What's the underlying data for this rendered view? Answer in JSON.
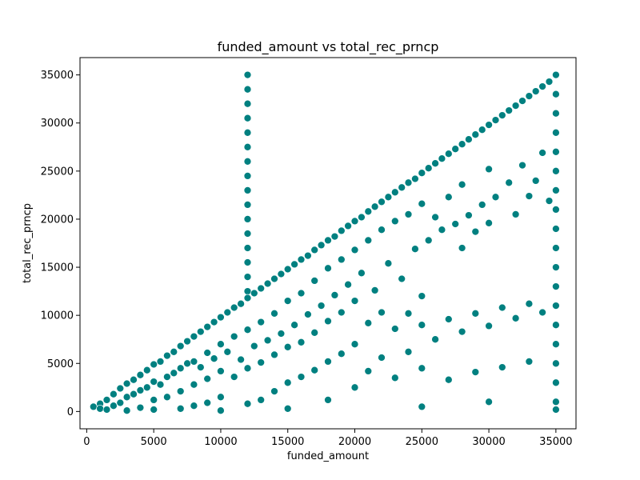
{
  "chart_data": {
    "type": "scatter",
    "title": "funded_amount vs total_rec_prncp",
    "xlabel": "funded_amount",
    "ylabel": "total_rec_prncp",
    "xlim": [
      -500,
      36500
    ],
    "ylim": [
      -1800,
      36800
    ],
    "xticks": [
      0,
      5000,
      10000,
      15000,
      20000,
      25000,
      30000,
      35000
    ],
    "yticks": [
      0,
      5000,
      10000,
      15000,
      20000,
      25000,
      30000,
      35000
    ],
    "grid": false,
    "legend": "none",
    "marker_color": "#008080",
    "marker_edge_color": "#ffffff",
    "series": [
      {
        "points": [
          [
            500,
            500
          ],
          [
            1000,
            800
          ],
          [
            1000,
            300
          ],
          [
            1500,
            1200
          ],
          [
            1500,
            200
          ],
          [
            2000,
            1800
          ],
          [
            2000,
            600
          ],
          [
            2500,
            2400
          ],
          [
            2500,
            900
          ],
          [
            3000,
            2900
          ],
          [
            3000,
            1500
          ],
          [
            3000,
            100
          ],
          [
            3500,
            3300
          ],
          [
            3500,
            1800
          ],
          [
            4000,
            3800
          ],
          [
            4000,
            2200
          ],
          [
            4000,
            400
          ],
          [
            4500,
            4300
          ],
          [
            4500,
            2500
          ],
          [
            5000,
            4900
          ],
          [
            5000,
            3100
          ],
          [
            5000,
            1200
          ],
          [
            5000,
            200
          ],
          [
            5500,
            5200
          ],
          [
            5500,
            2800
          ],
          [
            6000,
            5800
          ],
          [
            6000,
            3600
          ],
          [
            6000,
            1500
          ],
          [
            6500,
            6200
          ],
          [
            6500,
            4000
          ],
          [
            7000,
            6800
          ],
          [
            7000,
            4500
          ],
          [
            7000,
            2100
          ],
          [
            7000,
            300
          ],
          [
            7500,
            7300
          ],
          [
            7500,
            5000
          ],
          [
            8000,
            7800
          ],
          [
            8000,
            5200
          ],
          [
            8000,
            2800
          ],
          [
            8000,
            600
          ],
          [
            8500,
            8300
          ],
          [
            8500,
            4600
          ],
          [
            9000,
            8800
          ],
          [
            9000,
            6100
          ],
          [
            9000,
            3400
          ],
          [
            9000,
            900
          ],
          [
            9500,
            9300
          ],
          [
            9500,
            5500
          ],
          [
            10000,
            9800
          ],
          [
            10000,
            7000
          ],
          [
            10000,
            4200
          ],
          [
            10000,
            1500
          ],
          [
            10000,
            100
          ],
          [
            10500,
            10300
          ],
          [
            10500,
            6200
          ],
          [
            11000,
            10800
          ],
          [
            11000,
            7800
          ],
          [
            11000,
            3600
          ],
          [
            11500,
            11200
          ],
          [
            11500,
            5400
          ],
          [
            12000,
            35000
          ],
          [
            12000,
            33500
          ],
          [
            12000,
            32000
          ],
          [
            12000,
            30500
          ],
          [
            12000,
            29000
          ],
          [
            12000,
            27500
          ],
          [
            12000,
            26000
          ],
          [
            12000,
            24500
          ],
          [
            12000,
            23000
          ],
          [
            12000,
            21500
          ],
          [
            12000,
            20000
          ],
          [
            12000,
            18500
          ],
          [
            12000,
            17000
          ],
          [
            12000,
            15500
          ],
          [
            12000,
            14000
          ],
          [
            12000,
            12500
          ],
          [
            12000,
            11800
          ],
          [
            12000,
            8500
          ],
          [
            12000,
            4500
          ],
          [
            12000,
            800
          ],
          [
            12500,
            12300
          ],
          [
            12500,
            6800
          ],
          [
            13000,
            12800
          ],
          [
            13000,
            9300
          ],
          [
            13000,
            5100
          ],
          [
            13000,
            1200
          ],
          [
            13500,
            13300
          ],
          [
            13500,
            7400
          ],
          [
            14000,
            13800
          ],
          [
            14000,
            10200
          ],
          [
            14000,
            5900
          ],
          [
            14000,
            2100
          ],
          [
            14500,
            14300
          ],
          [
            14500,
            8100
          ],
          [
            15000,
            14800
          ],
          [
            15000,
            11500
          ],
          [
            15000,
            6700
          ],
          [
            15000,
            3000
          ],
          [
            15000,
            300
          ],
          [
            15500,
            15300
          ],
          [
            15500,
            9000
          ],
          [
            16000,
            15800
          ],
          [
            16000,
            12300
          ],
          [
            16000,
            7200
          ],
          [
            16000,
            3600
          ],
          [
            16500,
            16200
          ],
          [
            16500,
            10100
          ],
          [
            17000,
            16800
          ],
          [
            17000,
            13600
          ],
          [
            17000,
            8200
          ],
          [
            17000,
            4300
          ],
          [
            17500,
            17300
          ],
          [
            17500,
            11000
          ],
          [
            18000,
            17800
          ],
          [
            18000,
            14900
          ],
          [
            18000,
            9400
          ],
          [
            18000,
            5200
          ],
          [
            18000,
            1200
          ],
          [
            18500,
            18200
          ],
          [
            18500,
            12100
          ],
          [
            19000,
            18800
          ],
          [
            19000,
            15800
          ],
          [
            19000,
            10300
          ],
          [
            19000,
            6000
          ],
          [
            19500,
            19300
          ],
          [
            19500,
            13200
          ],
          [
            20000,
            19800
          ],
          [
            20000,
            16800
          ],
          [
            20000,
            11500
          ],
          [
            20000,
            7000
          ],
          [
            20000,
            2500
          ],
          [
            20500,
            20200
          ],
          [
            20500,
            14400
          ],
          [
            21000,
            20800
          ],
          [
            21000,
            17800
          ],
          [
            21000,
            9200
          ],
          [
            21000,
            4200
          ],
          [
            21500,
            21300
          ],
          [
            21500,
            12600
          ],
          [
            22000,
            21800
          ],
          [
            22000,
            18900
          ],
          [
            22000,
            10300
          ],
          [
            22000,
            5600
          ],
          [
            22500,
            22300
          ],
          [
            22500,
            15400
          ],
          [
            23000,
            22800
          ],
          [
            23000,
            19800
          ],
          [
            23000,
            8600
          ],
          [
            23000,
            3500
          ],
          [
            23500,
            23300
          ],
          [
            23500,
            13800
          ],
          [
            24000,
            23800
          ],
          [
            24000,
            20500
          ],
          [
            24000,
            10200
          ],
          [
            24000,
            6200
          ],
          [
            24500,
            24200
          ],
          [
            24500,
            16900
          ],
          [
            25000,
            24800
          ],
          [
            25000,
            21600
          ],
          [
            25000,
            12000
          ],
          [
            25000,
            9000
          ],
          [
            25000,
            4500
          ],
          [
            25000,
            500
          ],
          [
            25500,
            25300
          ],
          [
            25500,
            17800
          ],
          [
            26000,
            25800
          ],
          [
            26000,
            20200
          ],
          [
            26000,
            7500
          ],
          [
            26500,
            26300
          ],
          [
            26500,
            18900
          ],
          [
            27000,
            26800
          ],
          [
            27000,
            22300
          ],
          [
            27000,
            9600
          ],
          [
            27000,
            3300
          ],
          [
            27500,
            27300
          ],
          [
            27500,
            19500
          ],
          [
            28000,
            27800
          ],
          [
            28000,
            23600
          ],
          [
            28000,
            17000
          ],
          [
            28000,
            8300
          ],
          [
            28500,
            28300
          ],
          [
            28500,
            20400
          ],
          [
            29000,
            28800
          ],
          [
            29000,
            18700
          ],
          [
            29000,
            10200
          ],
          [
            29000,
            4100
          ],
          [
            29500,
            29300
          ],
          [
            29500,
            21500
          ],
          [
            30000,
            29800
          ],
          [
            30000,
            25200
          ],
          [
            30000,
            19600
          ],
          [
            30000,
            8900
          ],
          [
            30000,
            1000
          ],
          [
            30500,
            30300
          ],
          [
            30500,
            22300
          ],
          [
            31000,
            30800
          ],
          [
            31000,
            10800
          ],
          [
            31000,
            4600
          ],
          [
            31500,
            31300
          ],
          [
            31500,
            23800
          ],
          [
            32000,
            31800
          ],
          [
            32000,
            20500
          ],
          [
            32000,
            9700
          ],
          [
            32500,
            32300
          ],
          [
            32500,
            25600
          ],
          [
            33000,
            32800
          ],
          [
            33000,
            22400
          ],
          [
            33000,
            11200
          ],
          [
            33000,
            5200
          ],
          [
            33500,
            33300
          ],
          [
            33500,
            24000
          ],
          [
            34000,
            33800
          ],
          [
            34000,
            26900
          ],
          [
            34000,
            10300
          ],
          [
            34500,
            34300
          ],
          [
            34500,
            21900
          ],
          [
            35000,
            35000
          ],
          [
            35000,
            33000
          ],
          [
            35000,
            31000
          ],
          [
            35000,
            29000
          ],
          [
            35000,
            27000
          ],
          [
            35000,
            25000
          ],
          [
            35000,
            23000
          ],
          [
            35000,
            21000
          ],
          [
            35000,
            19000
          ],
          [
            35000,
            17000
          ],
          [
            35000,
            15000
          ],
          [
            35000,
            13000
          ],
          [
            35000,
            11000
          ],
          [
            35000,
            9000
          ],
          [
            35000,
            7000
          ],
          [
            35000,
            5000
          ],
          [
            35000,
            3000
          ],
          [
            35000,
            1000
          ],
          [
            35000,
            200
          ]
        ]
      }
    ]
  }
}
